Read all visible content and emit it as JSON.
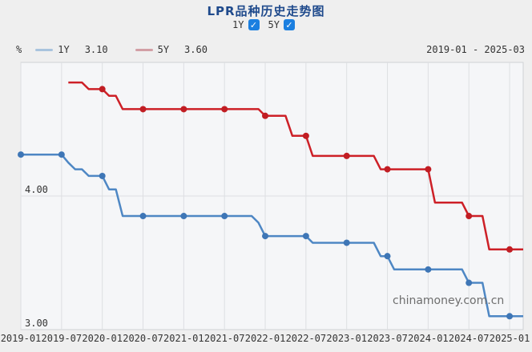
{
  "title": "LPR品种历史走势图",
  "toggles": {
    "check_glyph": "✓",
    "items": [
      {
        "label": "1Y",
        "checked": true
      },
      {
        "label": "5Y",
        "checked": true
      }
    ]
  },
  "legend": {
    "unit": "%",
    "series": [
      {
        "label": "1Y",
        "value": "3.10",
        "swatch": "#a9c4de"
      },
      {
        "label": "5Y",
        "value": "3.60",
        "swatch": "#d29fa5"
      }
    ],
    "date_range": "2019-01 - 2025-03"
  },
  "watermark": "chinamoney.com.cn",
  "colors": {
    "page_bg": "#efefef",
    "plot_bg": "#f5f6f8",
    "plot_border": "#cfd1d4",
    "grid": "#dddfe2",
    "title": "#1f4a8c",
    "text": "#333333",
    "checkbox": "#1b7fe0",
    "watermark": "#6e6e6e",
    "line_1y": "#4e87c4",
    "dot_1y": "#3e76b6",
    "line_5y": "#cd2027",
    "dot_5y": "#c11d23"
  },
  "chart_data": {
    "type": "line",
    "title": "LPR品种历史走势图",
    "ylabel": "%",
    "ylim": [
      3.0,
      5.0
    ],
    "grid": "vertical-6-month + horizontal at 4.00",
    "legend_position": "top",
    "x_start_month": "2019-01",
    "x_end_month": "2025-03",
    "x_total_months": 74,
    "x_tick_interval_months": 6,
    "x_tick_labels": [
      "2019-01",
      "2019-07",
      "2020-01",
      "2020-07",
      "2021-01",
      "2021-07",
      "2022-01",
      "2022-07",
      "2023-01",
      "2023-07",
      "2024-01",
      "2024-07",
      "2025-01"
    ],
    "y_ticks": [
      {
        "value": 4.0,
        "label": "4.00",
        "gridline": true
      },
      {
        "value": 3.0,
        "label": "3.00",
        "gridline": false
      }
    ],
    "series": [
      {
        "name": "1Y",
        "current_value": 3.1,
        "color": "#4e87c4",
        "dot_color": "#3e76b6",
        "start_month": "2019-01",
        "start_offset_months": 0,
        "monthly_values": [
          4.31,
          4.31,
          4.31,
          4.31,
          4.31,
          4.31,
          4.31,
          4.25,
          4.2,
          4.2,
          4.15,
          4.15,
          4.15,
          4.05,
          4.05,
          3.85,
          3.85,
          3.85,
          3.85,
          3.85,
          3.85,
          3.85,
          3.85,
          3.85,
          3.85,
          3.85,
          3.85,
          3.85,
          3.85,
          3.85,
          3.85,
          3.85,
          3.85,
          3.85,
          3.85,
          3.8,
          3.7,
          3.7,
          3.7,
          3.7,
          3.7,
          3.7,
          3.7,
          3.65,
          3.65,
          3.65,
          3.65,
          3.65,
          3.65,
          3.65,
          3.65,
          3.65,
          3.65,
          3.55,
          3.55,
          3.45,
          3.45,
          3.45,
          3.45,
          3.45,
          3.45,
          3.45,
          3.45,
          3.45,
          3.45,
          3.45,
          3.35,
          3.35,
          3.35,
          3.1,
          3.1,
          3.1,
          3.1,
          3.1,
          3.1
        ]
      },
      {
        "name": "5Y",
        "current_value": 3.6,
        "color": "#cd2027",
        "dot_color": "#c11d23",
        "start_month": "2019-08",
        "start_offset_months": 7,
        "monthly_values": [
          4.85,
          4.85,
          4.85,
          4.8,
          4.8,
          4.8,
          4.75,
          4.75,
          4.65,
          4.65,
          4.65,
          4.65,
          4.65,
          4.65,
          4.65,
          4.65,
          4.65,
          4.65,
          4.65,
          4.65,
          4.65,
          4.65,
          4.65,
          4.65,
          4.65,
          4.65,
          4.65,
          4.65,
          4.65,
          4.6,
          4.6,
          4.6,
          4.6,
          4.45,
          4.45,
          4.45,
          4.3,
          4.3,
          4.3,
          4.3,
          4.3,
          4.3,
          4.3,
          4.3,
          4.3,
          4.3,
          4.2,
          4.2,
          4.2,
          4.2,
          4.2,
          4.2,
          4.2,
          4.2,
          3.95,
          3.95,
          3.95,
          3.95,
          3.95,
          3.85,
          3.85,
          3.85,
          3.6,
          3.6,
          3.6,
          3.6,
          3.6,
          3.6
        ]
      }
    ]
  }
}
